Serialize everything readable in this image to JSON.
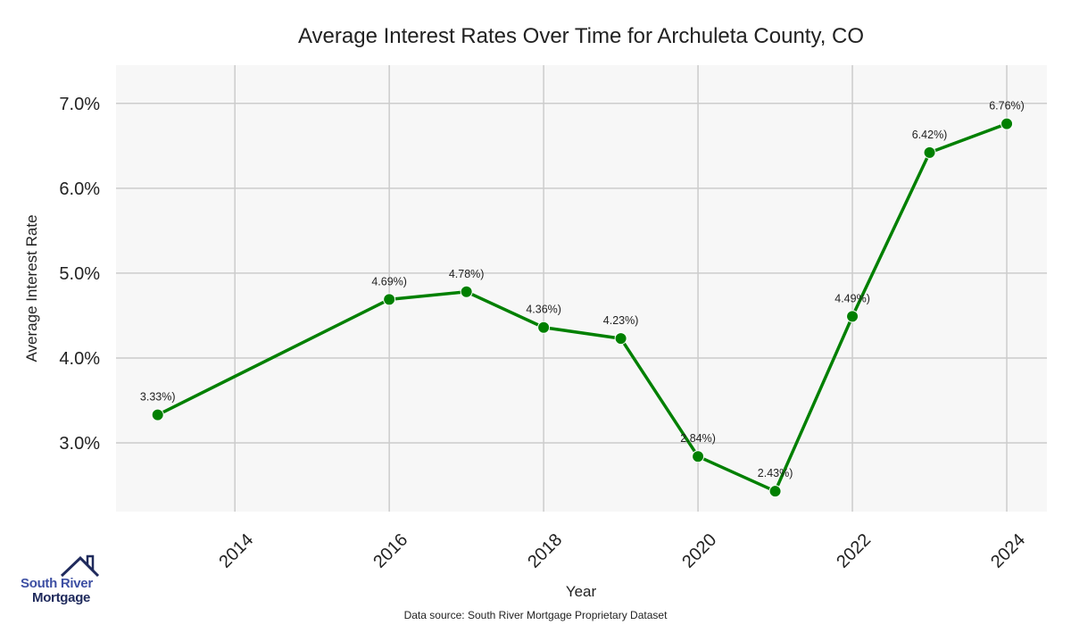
{
  "chart_data": {
    "type": "line",
    "title": "Average Interest Rates Over Time for Archuleta County, CO",
    "xlabel": "Year",
    "ylabel": "Average Interest Rate",
    "x": [
      2013,
      2016,
      2017,
      2018,
      2019,
      2020,
      2021,
      2022,
      2023,
      2024
    ],
    "values": [
      3.33,
      4.69,
      4.78,
      4.36,
      4.23,
      2.84,
      2.43,
      4.49,
      6.42,
      6.76
    ],
    "data_labels": [
      "3.33%)",
      "4.69%)",
      "4.78%)",
      "4.36%)",
      "4.23%)",
      "2.84%)",
      "2.43%)",
      "4.49%)",
      "6.42%)",
      "6.76%)"
    ],
    "x_ticks": [
      2014,
      2016,
      2018,
      2020,
      2022,
      2024
    ],
    "y_ticks": [
      3.0,
      4.0,
      5.0,
      6.0,
      7.0
    ],
    "y_tick_labels": [
      "3.0%",
      "4.0%",
      "5.0%",
      "6.0%",
      "7.0%"
    ],
    "xlim": [
      2012.46,
      2024.52
    ],
    "ylim": [
      2.19,
      7.45
    ],
    "grid": true,
    "line_color": "#008000",
    "plot_bg": "#f7f7f7",
    "grid_color": "#cccccc"
  },
  "footer": {
    "source": "Data source: South River Mortgage Proprietary Dataset"
  },
  "logo": {
    "line1": "South River",
    "line2": "Mortgage"
  }
}
